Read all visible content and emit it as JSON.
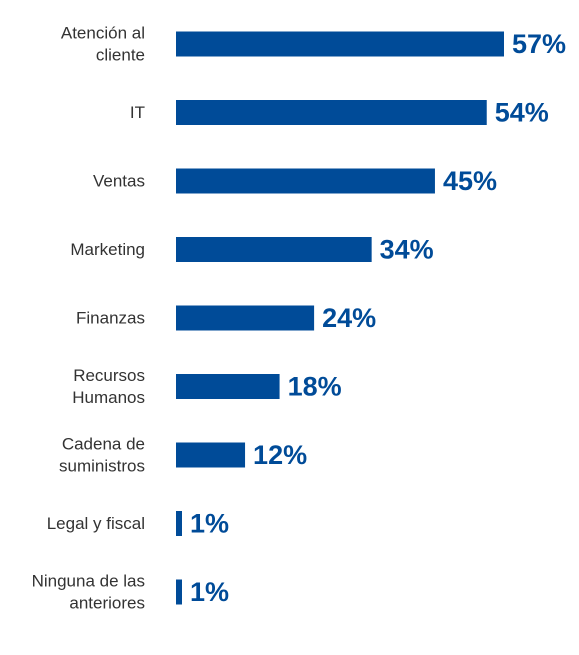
{
  "chart_data": {
    "type": "bar",
    "orientation": "horizontal",
    "categories": [
      [
        "Atención al",
        "cliente"
      ],
      [
        "IT"
      ],
      [
        "Ventas"
      ],
      [
        "Marketing"
      ],
      [
        "Finanzas"
      ],
      [
        "Recursos",
        "Humanos"
      ],
      [
        "Cadena de",
        "suministros"
      ],
      [
        "Legal y fiscal"
      ],
      [
        "Ninguna de las",
        "anteriores"
      ]
    ],
    "values": [
      57,
      54,
      45,
      34,
      24,
      18,
      12,
      1,
      1
    ],
    "value_labels": [
      "57%",
      "54%",
      "45%",
      "34%",
      "24%",
      "18%",
      "12%",
      "1%",
      "1%"
    ],
    "unit": "%",
    "xlim": [
      0,
      57
    ],
    "grid": false,
    "legend": "none",
    "bar_color": "#004b98",
    "label_color": "#333333",
    "value_label_color": "#004b98"
  }
}
